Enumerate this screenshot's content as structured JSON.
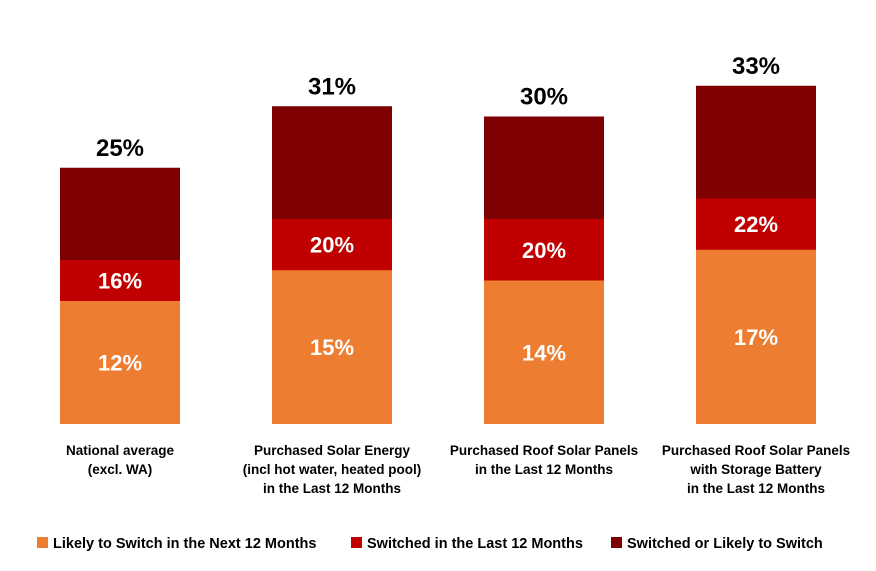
{
  "chart_data": {
    "type": "bar",
    "layout": "overlapping cumulative bars",
    "categories": [
      [
        "National average",
        "(excl. WA)"
      ],
      [
        "Purchased Solar Energy",
        "(incl hot water, heated pool)",
        "in the Last 12 Months"
      ],
      [
        "Purchased Roof Solar Panels",
        "in the Last 12 Months"
      ],
      [
        "Purchased Roof Solar Panels",
        "with Storage Battery",
        "in the Last 12 Months"
      ]
    ],
    "series": [
      {
        "name": "Likely to Switch in the Next 12 Months",
        "color": "#ED7D31",
        "values": [
          12,
          15,
          14,
          17
        ],
        "labels": [
          "12%",
          "15%",
          "14%",
          "17%"
        ]
      },
      {
        "name": "Switched in the Last 12 Months",
        "color": "#C00000",
        "values": [
          16,
          20,
          20,
          22
        ],
        "labels": [
          "16%",
          "20%",
          "20%",
          "22%"
        ]
      },
      {
        "name": "Switched or Likely to Switch",
        "color": "#7F0000",
        "values": [
          25,
          31,
          30,
          33
        ],
        "labels": [
          "25%",
          "31%",
          "30%",
          "33%"
        ]
      }
    ],
    "ylim": [
      0,
      35
    ],
    "grid": false,
    "legend": "bottom"
  }
}
